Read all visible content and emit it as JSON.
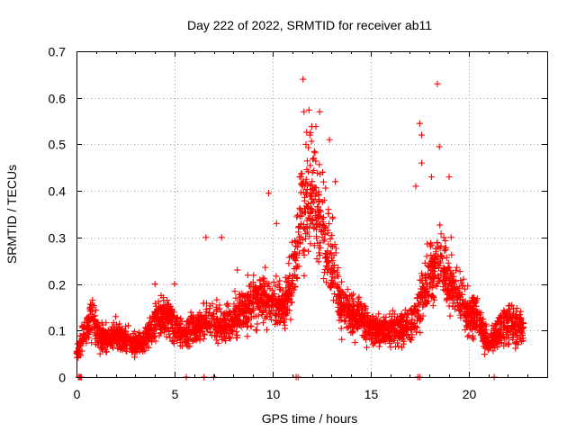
{
  "chart_data": {
    "type": "scatter",
    "title": "Day 222 of 2022, SRMTID for receiver ab11",
    "xlabel": "GPS time / hours",
    "ylabel": "SRMTID / TECUs",
    "xlim": [
      0,
      24
    ],
    "ylim": [
      0,
      0.7
    ],
    "xticks": [
      "0",
      "5",
      "10",
      "15",
      "20"
    ],
    "yticks": [
      "0",
      "0.1",
      "0.2",
      "0.3",
      "0.4",
      "0.5",
      "0.6",
      "0.7"
    ],
    "grid": true,
    "marker": "+",
    "color": "#ff0000",
    "profile": [
      [
        0.0,
        0.05
      ],
      [
        0.5,
        0.1
      ],
      [
        0.8,
        0.13
      ],
      [
        1.2,
        0.08
      ],
      [
        2.0,
        0.09
      ],
      [
        3.0,
        0.07
      ],
      [
        3.5,
        0.08
      ],
      [
        4.0,
        0.12
      ],
      [
        4.5,
        0.13
      ],
      [
        5.5,
        0.09
      ],
      [
        6.5,
        0.12
      ],
      [
        7.5,
        0.11
      ],
      [
        8.5,
        0.14
      ],
      [
        9.5,
        0.17
      ],
      [
        10.5,
        0.15
      ],
      [
        11.0,
        0.2
      ],
      [
        11.5,
        0.37
      ],
      [
        12.0,
        0.4
      ],
      [
        12.5,
        0.32
      ],
      [
        13.0,
        0.25
      ],
      [
        13.5,
        0.15
      ],
      [
        14.5,
        0.13
      ],
      [
        15.0,
        0.1
      ],
      [
        16.0,
        0.1
      ],
      [
        17.0,
        0.11
      ],
      [
        17.5,
        0.15
      ],
      [
        18.0,
        0.22
      ],
      [
        18.5,
        0.25
      ],
      [
        19.0,
        0.2
      ],
      [
        19.5,
        0.17
      ],
      [
        20.0,
        0.14
      ],
      [
        20.5,
        0.12
      ],
      [
        21.0,
        0.07
      ],
      [
        21.5,
        0.1
      ],
      [
        22.0,
        0.12
      ],
      [
        22.8,
        0.1
      ]
    ],
    "outliers": [
      [
        11.55,
        0.64
      ],
      [
        11.6,
        0.57
      ],
      [
        12.4,
        0.57
      ],
      [
        11.9,
        0.52
      ],
      [
        12.9,
        0.51
      ],
      [
        18.4,
        0.63
      ],
      [
        17.5,
        0.545
      ],
      [
        17.6,
        0.52
      ],
      [
        18.5,
        0.495
      ],
      [
        17.6,
        0.46
      ],
      [
        9.8,
        0.395
      ],
      [
        10.2,
        0.33
      ],
      [
        11.7,
        0.5
      ],
      [
        12.1,
        0.47
      ],
      [
        13.2,
        0.42
      ],
      [
        18.1,
        0.43
      ],
      [
        19.0,
        0.43
      ],
      [
        17.3,
        0.41
      ],
      [
        19.1,
        0.3
      ],
      [
        6.6,
        0.3
      ],
      [
        7.4,
        0.3
      ],
      [
        5.0,
        0.2
      ],
      [
        4.0,
        0.2
      ],
      [
        8.2,
        0.23
      ],
      [
        2.0,
        0.13
      ]
    ],
    "zero_points": [
      0.1,
      0.15,
      0.2,
      0.25,
      5.6,
      6.5,
      7.0,
      11.2,
      11.3,
      17.4,
      17.5,
      21.3
    ],
    "point_count": 3000
  }
}
